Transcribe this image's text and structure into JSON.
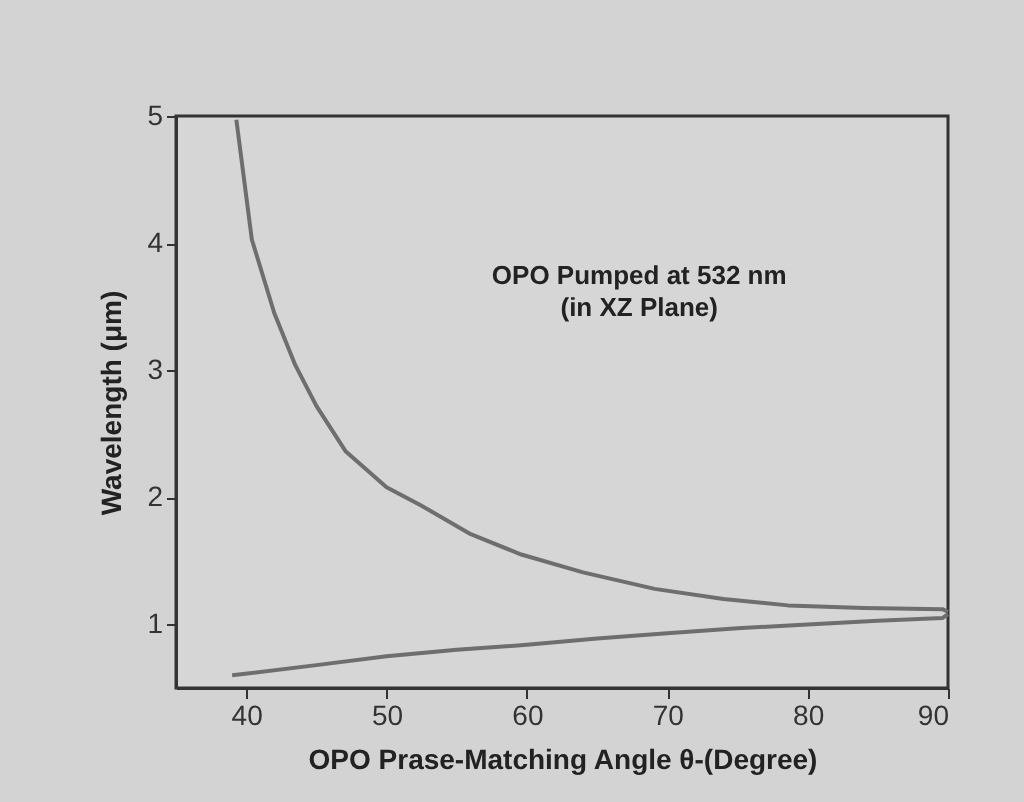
{
  "chart_data": {
    "type": "line",
    "xlabel": "OPO Prase-Matching Angle θ-(Degree)",
    "ylabel": "Wavelength (μm)",
    "annotations": [
      "OPO Pumped at 532 nm\n(in XZ Plane)"
    ],
    "xlim": [
      35,
      90
    ],
    "xticks": [
      40,
      50,
      60,
      70,
      80,
      90
    ],
    "ylim": [
      0.5,
      5
    ],
    "yticks": [
      1,
      2,
      3,
      4,
      5
    ],
    "grid": false,
    "marker": "none",
    "line_style": "solid",
    "series": [
      {
        "color": "#6e6e6e",
        "x": [
          39.3,
          40.4,
          42,
          43.5,
          45,
          47.1,
          50,
          52.4,
          56,
          59.6,
          64,
          69.1,
          74,
          78.6,
          84,
          89.6,
          90
        ],
        "values": [
          4.97,
          4.03,
          3.45,
          3.04,
          2.72,
          2.36,
          2.08,
          1.94,
          1.71,
          1.55,
          1.41,
          1.28,
          1.2,
          1.15,
          1.13,
          1.12,
          1.1
        ]
      },
      {
        "color": "#6e6e6e",
        "x": [
          39.0,
          45,
          50,
          55,
          60,
          65,
          70,
          75,
          80,
          85,
          89.6,
          90
        ],
        "values": [
          0.6,
          0.68,
          0.75,
          0.8,
          0.84,
          0.89,
          0.93,
          0.97,
          1.0,
          1.03,
          1.05,
          1.08
        ]
      }
    ]
  }
}
